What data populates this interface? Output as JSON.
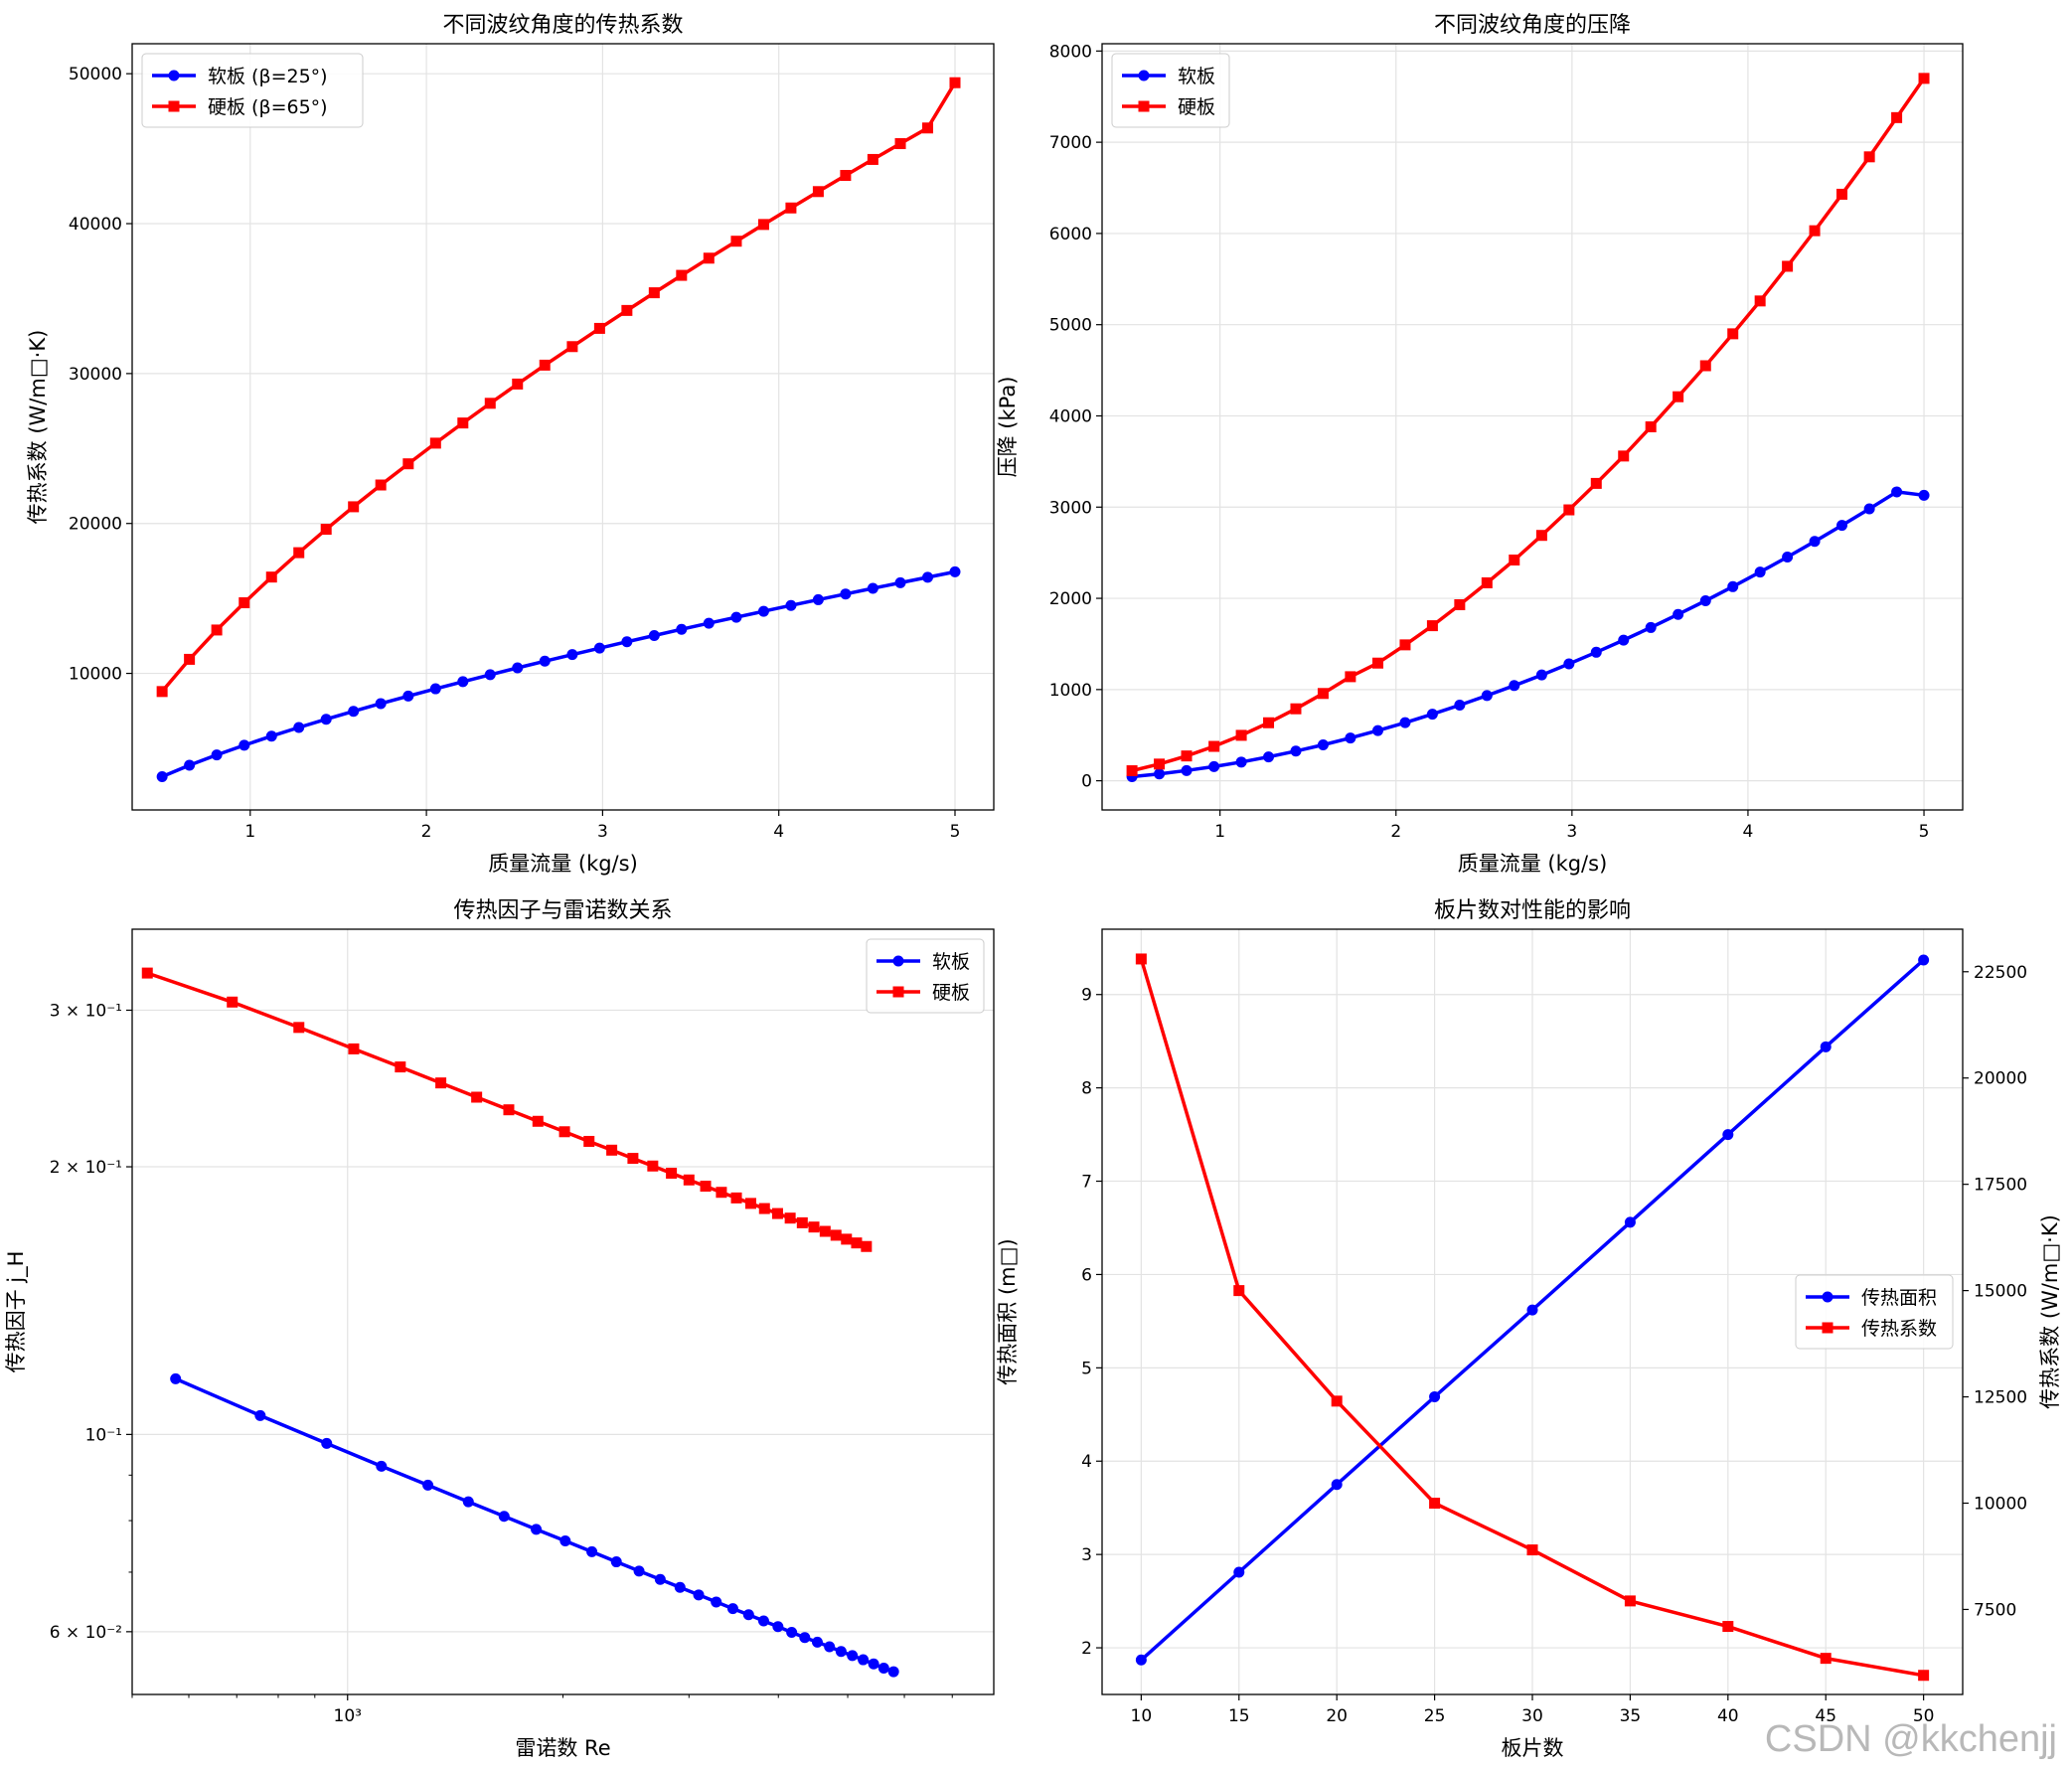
{
  "watermark": "CSDN @kkchenjj",
  "chart_data": [
    {
      "type": "line",
      "title": "不同波纹角度的传热系数",
      "xlabel": "质量流量 (kg/s)",
      "ylabel": "传热系数 (W/m□·K)",
      "xlim": [
        0.33,
        5.22
      ],
      "ylim": [
        890,
        52000
      ],
      "xticks": [
        1,
        2,
        3,
        4,
        5
      ],
      "yticks": [
        10000,
        20000,
        30000,
        40000,
        50000
      ],
      "grid": true,
      "legend": "top-left",
      "x": [
        0.5,
        0.655,
        0.81,
        0.966,
        1.121,
        1.276,
        1.431,
        1.586,
        1.741,
        1.897,
        2.052,
        2.207,
        2.362,
        2.517,
        2.672,
        2.828,
        2.983,
        3.138,
        3.293,
        3.448,
        3.603,
        3.759,
        3.914,
        4.069,
        4.224,
        4.379,
        4.534,
        4.69,
        4.845,
        5.0
      ],
      "series": [
        {
          "name": "软板 (β=25°)",
          "color": "#0000ff",
          "marker": "circle",
          "values": [
            3112,
            3872,
            4564,
            5207,
            5813,
            6389,
            6941,
            7472,
            7987,
            8487,
            8974,
            9449,
            9914,
            10369,
            10816,
            11254,
            11685,
            12110,
            12527,
            12939,
            13345,
            13745,
            14140,
            14530,
            14915,
            15295,
            15671,
            16043,
            16411,
            16775
          ]
        },
        {
          "name": "硬板 (β=65°)",
          "color": "#ff0000",
          "marker": "square",
          "values": [
            8789,
            10938,
            12893,
            14710,
            16424,
            18052,
            19612,
            21114,
            22566,
            23979,
            25357,
            26702,
            28015,
            29300,
            30560,
            31797,
            33013,
            34209,
            35388,
            36550,
            37696,
            38827,
            39943,
            41046,
            42137,
            43215,
            44281,
            45336,
            46380,
            49400
          ]
        }
      ]
    },
    {
      "type": "line",
      "title": "不同波纹角度的压降",
      "xlabel": "质量流量 (kg/s)",
      "ylabel": "压降 (kPa)",
      "xlim": [
        0.33,
        5.22
      ],
      "ylim": [
        -320,
        8080
      ],
      "xticks": [
        1,
        2,
        3,
        4,
        5
      ],
      "yticks": [
        0,
        1000,
        2000,
        3000,
        4000,
        5000,
        6000,
        7000,
        8000
      ],
      "grid": true,
      "legend": "top-left",
      "x": [
        0.5,
        0.655,
        0.81,
        0.966,
        1.121,
        1.276,
        1.431,
        1.586,
        1.741,
        1.897,
        2.052,
        2.207,
        2.362,
        2.517,
        2.672,
        2.828,
        2.983,
        3.138,
        3.293,
        3.448,
        3.603,
        3.759,
        3.914,
        4.069,
        4.224,
        4.379,
        4.534,
        4.69,
        4.845,
        5.0
      ],
      "series": [
        {
          "name": "软板",
          "color": "#0000ff",
          "marker": "circle",
          "values": [
            45,
            75,
            112,
            155,
            205,
            262,
            325,
            394,
            469,
            550,
            637,
            730,
            829,
            934,
            1044,
            1160,
            1282,
            1409,
            1542,
            1680,
            1824,
            1973,
            2128,
            2288,
            2453,
            2624,
            2800,
            2981,
            3167,
            3130
          ]
        },
        {
          "name": "硬板",
          "color": "#ff0000",
          "marker": "square",
          "values": [
            110,
            183,
            272,
            377,
            498,
            636,
            789,
            957,
            1141,
            1290,
            1490,
            1700,
            1930,
            2170,
            2420,
            2690,
            2970,
            3260,
            3560,
            3880,
            4210,
            4550,
            4900,
            5260,
            5640,
            6030,
            6430,
            6840,
            7270,
            7700
          ]
        }
      ]
    },
    {
      "type": "line",
      "title": "传热因子与雷诺数关系",
      "xlabel": "雷诺数 Re",
      "ylabel": "传热因子 j_H",
      "xscale": "log",
      "yscale": "log",
      "xlim": [
        500,
        8000
      ],
      "ylim": [
        0.051,
        0.37
      ],
      "xticks": [
        1000
      ],
      "xticklabels": [
        "10³"
      ],
      "yticks": [
        0.06,
        0.1,
        0.2,
        0.3
      ],
      "yticklabels": [
        "6 × 10⁻²",
        "10⁻¹",
        "2 × 10⁻¹",
        "3 × 10⁻¹"
      ],
      "grid": true,
      "legend": "top-right",
      "series": [
        {
          "name": "软板",
          "color": "#0000ff",
          "marker": "circle",
          "x": [
            575,
            755,
            935,
            1115,
            1295,
            1475,
            1655,
            1835,
            2015,
            2195,
            2375,
            2555,
            2735,
            2915,
            3095,
            3275,
            3455,
            3635,
            3815,
            3995,
            4175,
            4355,
            4535,
            4715,
            4895,
            5075,
            5255,
            5435,
            5615,
            5795
          ],
          "values": [
            0.1155,
            0.105,
            0.0977,
            0.0921,
            0.0877,
            0.084,
            0.0809,
            0.0782,
            0.0759,
            0.0738,
            0.0719,
            0.0702,
            0.0687,
            0.0673,
            0.066,
            0.0648,
            0.0637,
            0.0627,
            0.0617,
            0.0608,
            0.0599,
            0.0591,
            0.0584,
            0.0577,
            0.057,
            0.0564,
            0.0558,
            0.0552,
            0.0546,
            0.0541
          ]
        },
        {
          "name": "硬板",
          "color": "#ff0000",
          "marker": "square",
          "x": [
            525,
            690,
            855,
            1020,
            1185,
            1350,
            1515,
            1680,
            1845,
            2010,
            2175,
            2340,
            2505,
            2670,
            2835,
            3000,
            3165,
            3330,
            3495,
            3660,
            3825,
            3990,
            4155,
            4320,
            4485,
            4650,
            4815,
            4980,
            5145,
            5310
          ],
          "values": [
            0.3303,
            0.3064,
            0.2869,
            0.2714,
            0.259,
            0.2485,
            0.2395,
            0.2318,
            0.225,
            0.219,
            0.2136,
            0.2088,
            0.2044,
            0.2004,
            0.1967,
            0.1933,
            0.1902,
            0.1872,
            0.1845,
            0.1819,
            0.1795,
            0.1772,
            0.1751,
            0.173,
            0.1711,
            0.1692,
            0.1675,
            0.1658,
            0.1642,
            0.1627
          ]
        }
      ]
    },
    {
      "type": "line",
      "title": "板片数对性能的影响",
      "xlabel": "板片数",
      "ylabel": "传热面积 (m□)",
      "ylabel_right": "传热系数 (W/m□·K)",
      "xlim": [
        8,
        52
      ],
      "ylim": [
        1.5,
        9.7
      ],
      "ylim_right": [
        5500,
        23500
      ],
      "xticks": [
        10,
        15,
        20,
        25,
        30,
        35,
        40,
        45,
        50
      ],
      "yticks": [
        2,
        3,
        4,
        5,
        6,
        7,
        8,
        9
      ],
      "yticks_right": [
        7500,
        10000,
        12500,
        15000,
        17500,
        20000,
        22500
      ],
      "grid": true,
      "legend": "center-right",
      "x": [
        10,
        15,
        20,
        25,
        30,
        35,
        40,
        45,
        50
      ],
      "series": [
        {
          "name": "传热面积",
          "axis": "left",
          "color": "#0000ff",
          "marker": "circle",
          "values": [
            1.87,
            2.81,
            3.75,
            4.69,
            5.62,
            6.56,
            7.5,
            8.44,
            9.37
          ]
        },
        {
          "name": "传热系数",
          "axis": "right",
          "color": "#ff0000",
          "marker": "square",
          "values": [
            22800,
            15000,
            12400,
            10000,
            8900,
            7700,
            7100,
            6350,
            5950
          ]
        }
      ]
    }
  ]
}
